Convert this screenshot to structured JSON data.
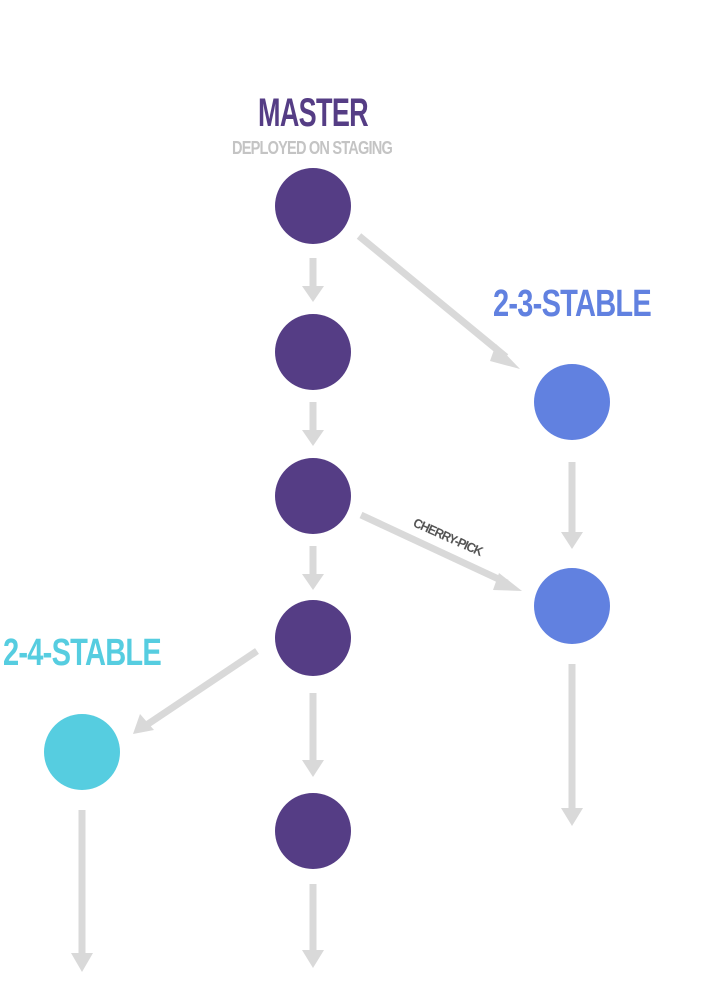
{
  "branches": {
    "master": {
      "title": "MASTER",
      "subtitle": "DEPLOYED ON STAGING",
      "color": "#553d85"
    },
    "stable_2_3": {
      "title": "2-3-STABLE",
      "color": "#6181e0"
    },
    "stable_2_4": {
      "title": "2-4-STABLE",
      "color": "#56cde0"
    }
  },
  "edges": {
    "cherry_pick_label": "CHERRY-PICK",
    "color": "#d9d9d9"
  }
}
